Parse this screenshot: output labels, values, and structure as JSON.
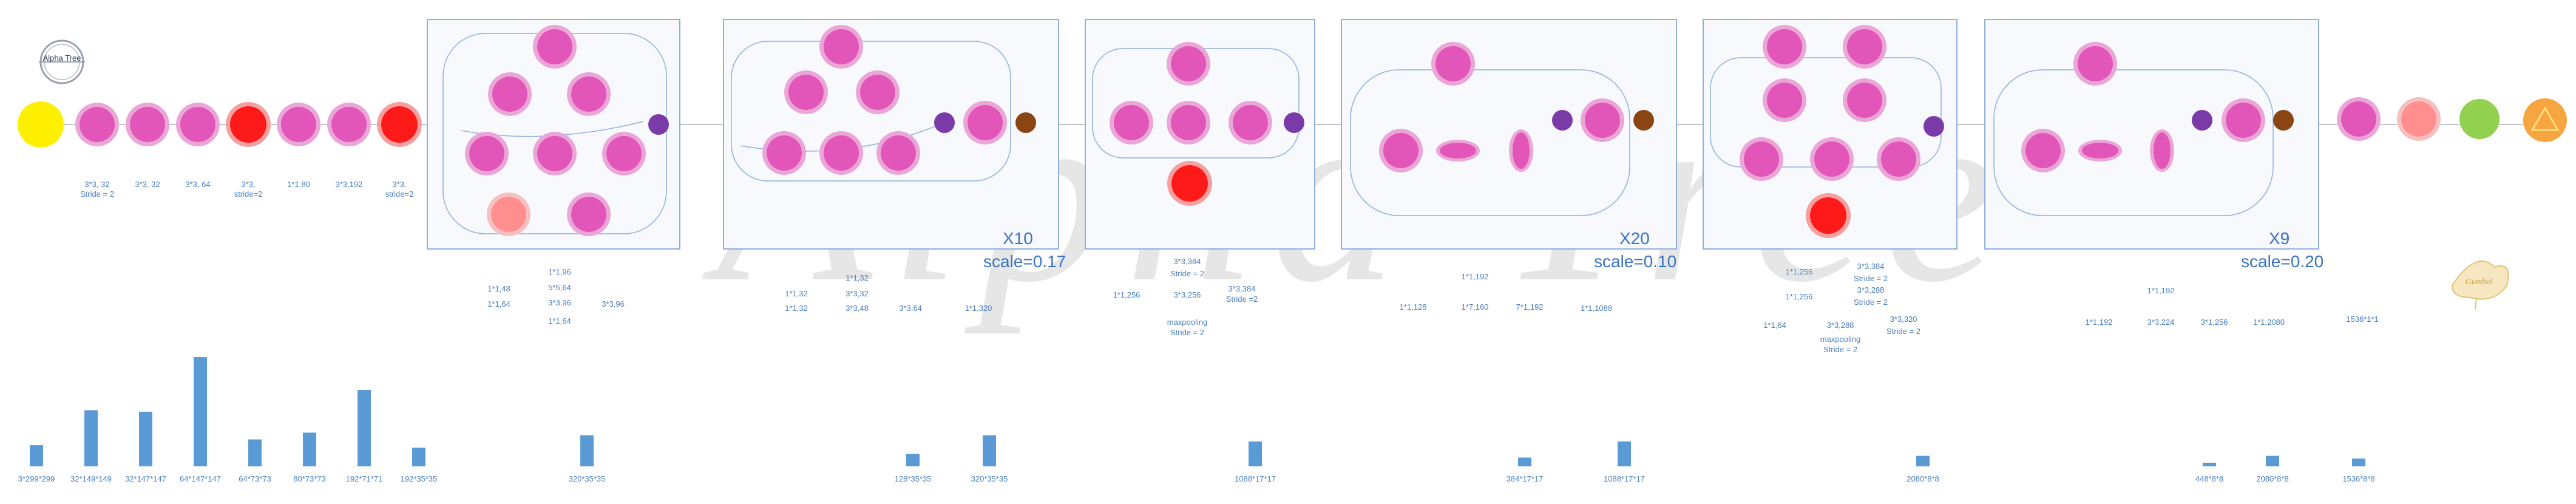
{
  "logo": {
    "text": "Alpha Tree"
  },
  "watermark": {
    "text": "Alpha Tree"
  },
  "brand": {
    "text": "Gumbel"
  },
  "colors": {
    "pink": "#e156b8",
    "pink_ring": "#eba6d8",
    "red": "#ff1a1a",
    "salmon": "#ff8f8f",
    "purple": "#7a3aa8",
    "brown": "#8b4513",
    "yellow": "#ffef00",
    "green": "#92d050",
    "orange": "#f7a541",
    "box_border": "#8fb0dc",
    "label": "#4a7fc0",
    "bar": "#5b9bd5"
  },
  "stem_labels": [
    {
      "lines": [
        "3*3, 32",
        "Stride = 2"
      ]
    },
    {
      "lines": [
        "3*3, 32"
      ]
    },
    {
      "lines": [
        "3*3, 64"
      ]
    },
    {
      "lines": [
        "3*3,",
        "stride=2"
      ]
    },
    {
      "lines": [
        "1*1,80"
      ]
    },
    {
      "lines": [
        "3*3,192"
      ]
    },
    {
      "lines": [
        "3*3,",
        "stride=2"
      ]
    }
  ],
  "block_labels": {
    "b1": [
      "1*1,96",
      "5*5,64",
      "3*3,96",
      "1*1,64",
      "1*1,48",
      "1*1,64",
      "3*3,96"
    ],
    "b2": [
      "1*1,32",
      "3*3,32",
      "3*3,48",
      "1*1,32",
      "1*1,32",
      "3*3,64",
      "1*1,320"
    ],
    "b3": [
      "3*3,384",
      "Stride = 2",
      "3*3,256",
      "maxpooling",
      "Stride = 2",
      "1*1,256",
      "3*3,384",
      "Stride =2"
    ],
    "b4": [
      "1*1,192",
      "1*1,128",
      "1*7,160",
      "7*1,192",
      "1*1,1088"
    ],
    "b5": [
      "1*1,256",
      "1*1,256",
      "1*1,64",
      "3*3,384",
      "Stride = 2",
      "3*3,288",
      "Stride = 2",
      "3*3,288",
      "maxpooling",
      "Stride = 2",
      "3*3,320",
      "Stride = 2"
    ],
    "b6": [
      "1*1,192",
      "1*1,192",
      "3*3,224",
      "3*1,256",
      "1*1,2080",
      "1536*1*1"
    ]
  },
  "repeat_labels": {
    "b2_mult": "X10",
    "b2_scale": "scale=0.17",
    "b4_mult": "X20",
    "b4_scale": "scale=0.10",
    "b6_mult": "X9",
    "b6_scale": "scale=0.20"
  },
  "chart_data": {
    "type": "bar",
    "categories": [
      "3*299*299",
      "32*149*149",
      "32*147*147",
      "64*147*147",
      "64*73*73",
      "80*73*73",
      "192*71*71",
      "192*35*35",
      "320*35*35",
      "128*35*35",
      "320*35*35",
      "1088*17*17",
      "384*17*17",
      "1088*17*17",
      "2080*8*8",
      "448*8*8",
      "2080*8*8",
      "1536*8*8"
    ],
    "values": [
      268203,
      710432,
      691488,
      1382976,
      341056,
      426320,
      967872,
      235200,
      392000,
      156800,
      392000,
      314432,
      110976,
      314432,
      133120,
      28672,
      133120,
      98304
    ]
  }
}
